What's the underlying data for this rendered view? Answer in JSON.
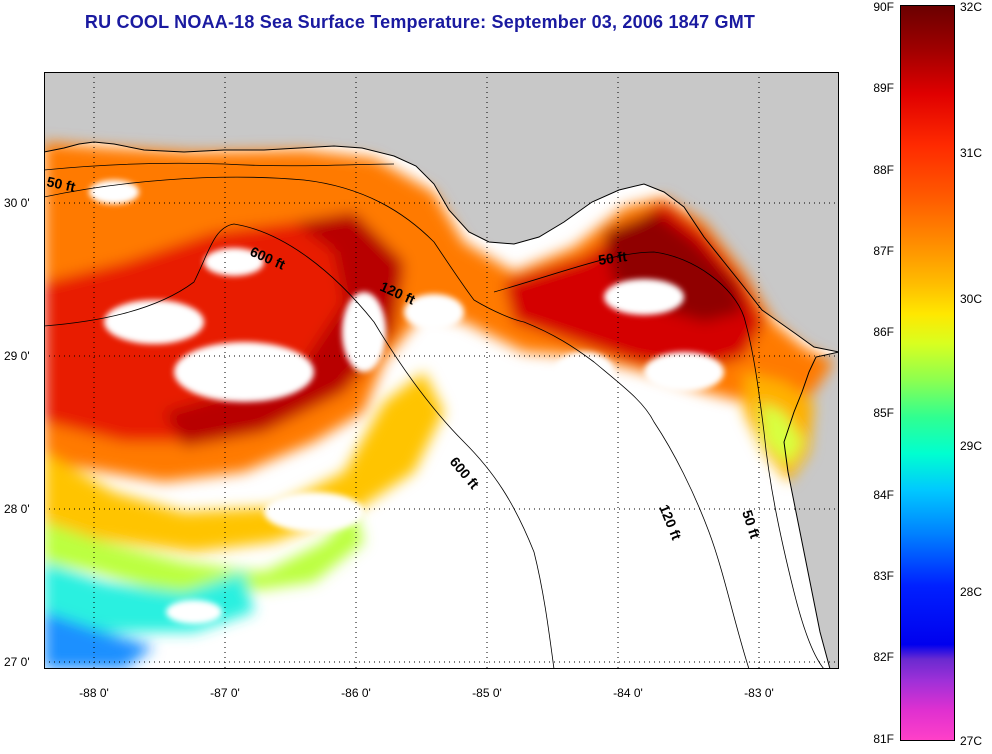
{
  "title": "RU COOL  NOAA-18  Sea Surface Temperature:  September 03, 2006 1847 GMT",
  "map": {
    "lat_labels": [
      "30 0'",
      "29 0'",
      "28 0'",
      "27 0'"
    ],
    "lon_labels": [
      "-88 0'",
      "-87 0'",
      "-86 0'",
      "-85 0'",
      "-84 0'",
      "-83 0'"
    ],
    "contour_labels": [
      "50 ft",
      "600 ft",
      "120 ft",
      "50 ft",
      "600 ft",
      "120 ft",
      "50 ft"
    ],
    "colors": {
      "land": "#c8c8c8",
      "water_nodata": "#ffffff",
      "grid": "#000000"
    }
  },
  "colorbar": {
    "f_labels": [
      "90F",
      "89F",
      "88F",
      "87F",
      "86F",
      "85F",
      "84F",
      "83F",
      "82F",
      "81F"
    ],
    "c_labels": [
      "32C",
      "31C",
      "30C",
      "29C",
      "28C",
      "27C"
    ]
  }
}
